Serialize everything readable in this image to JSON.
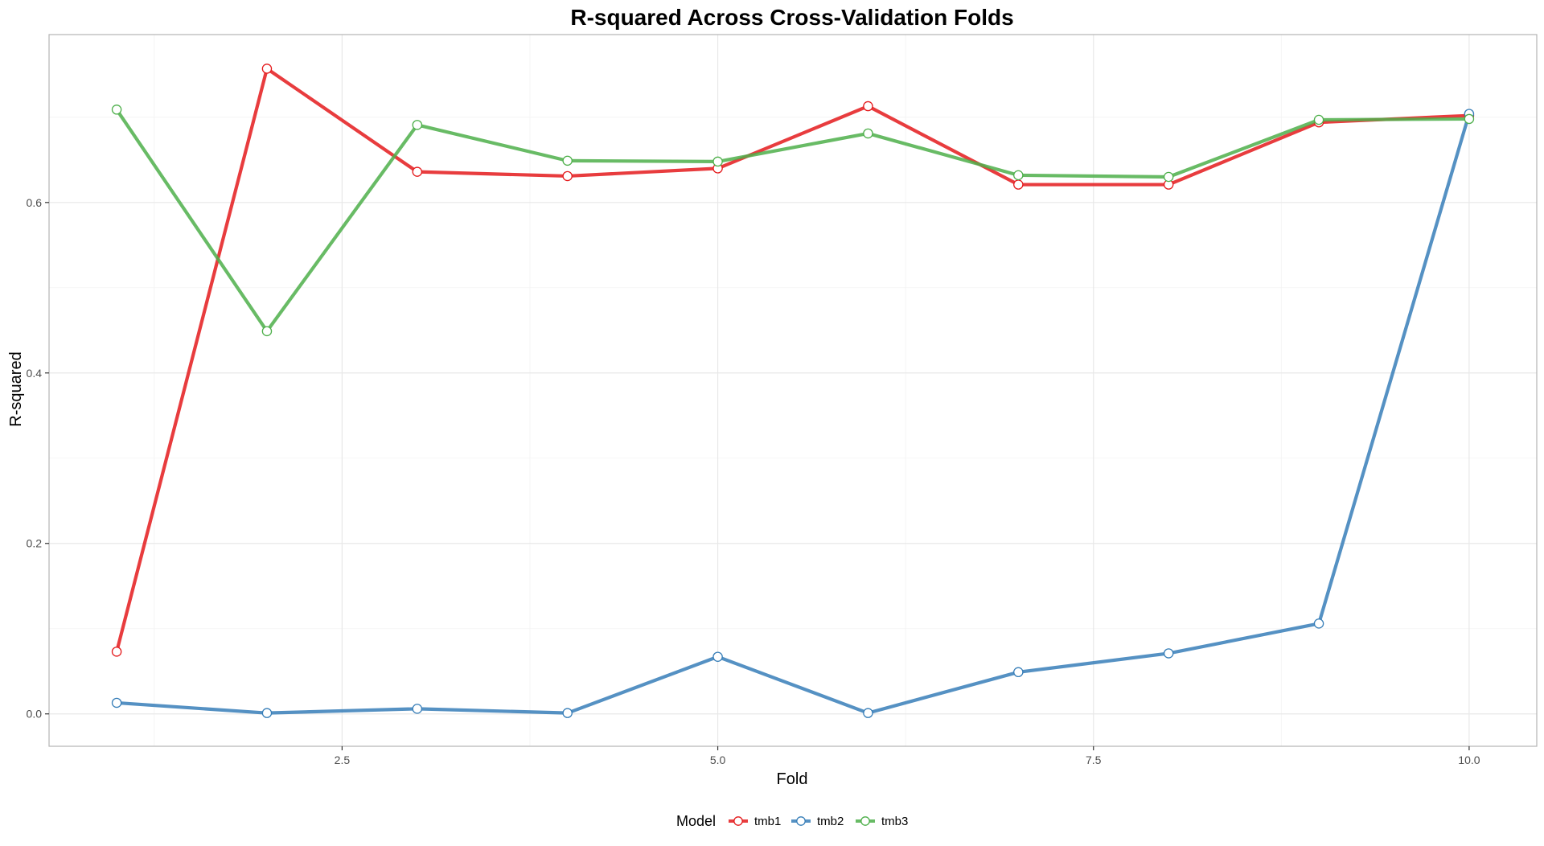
{
  "chart_data": {
    "type": "line",
    "title": "R-squared Across Cross-Validation Folds",
    "xlabel": "Fold",
    "ylabel": "R-squared",
    "x": [
      1,
      2,
      3,
      4,
      5,
      6,
      7,
      8,
      9,
      10
    ],
    "xlim": [
      0.55,
      10.45
    ],
    "ylim": [
      -0.038,
      0.797
    ],
    "x_ticks": [
      2.5,
      5.0,
      7.5,
      10.0
    ],
    "x_tick_labels": [
      "2.5",
      "5.0",
      "7.5",
      "10.0"
    ],
    "y_ticks": [
      0.0,
      0.2,
      0.4,
      0.6
    ],
    "y_tick_labels": [
      "0.0",
      "0.2",
      "0.4",
      "0.6"
    ],
    "grid": true,
    "legend": {
      "title": "Model",
      "placement": "bottom"
    },
    "series": [
      {
        "name": "tmb1",
        "color": "#E41A1C",
        "values": [
          0.073,
          0.757,
          0.636,
          0.631,
          0.64,
          0.713,
          0.621,
          0.621,
          0.694,
          0.702
        ]
      },
      {
        "name": "tmb2",
        "color": "#377EB8",
        "values": [
          0.013,
          0.001,
          0.006,
          0.001,
          0.067,
          0.001,
          0.049,
          0.071,
          0.106,
          0.704
        ]
      },
      {
        "name": "tmb3",
        "color": "#4DAF4A",
        "values": [
          0.709,
          0.449,
          0.691,
          0.649,
          0.648,
          0.681,
          0.632,
          0.63,
          0.697,
          0.698
        ]
      }
    ]
  }
}
